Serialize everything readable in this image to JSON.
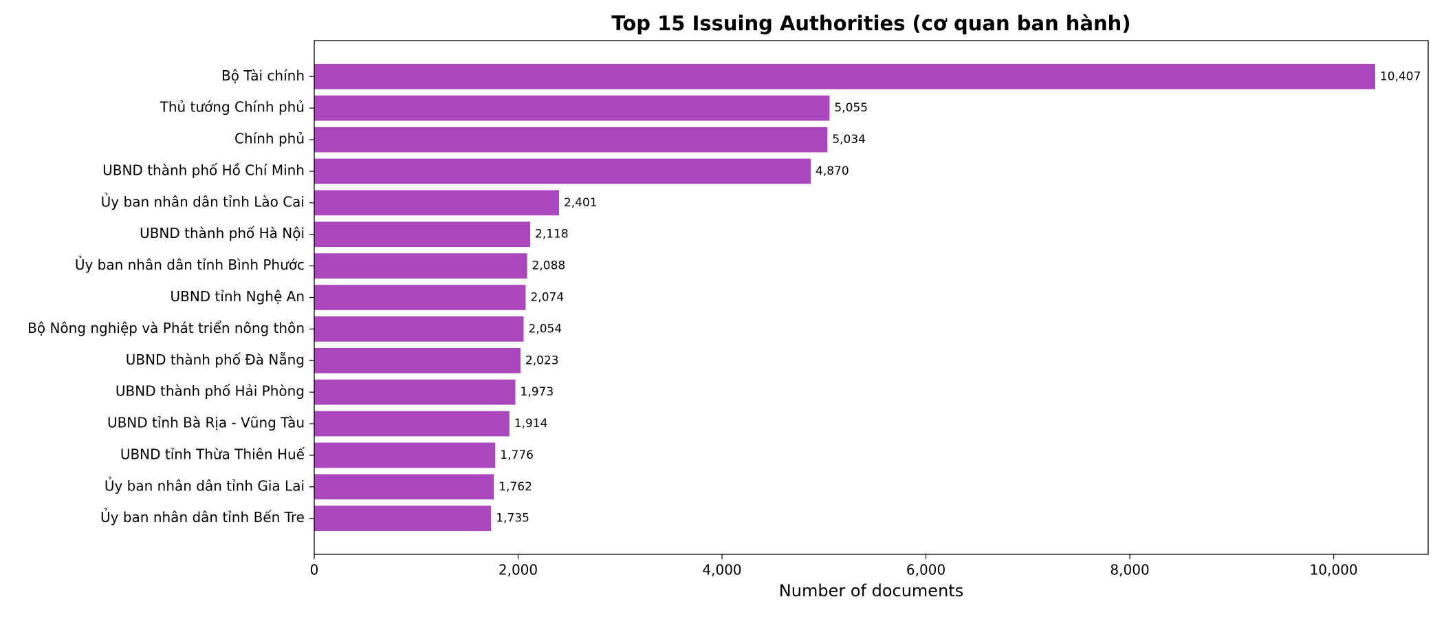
{
  "chart_data": {
    "type": "barh",
    "title": "Top 15 Issuing Authorities (cơ quan ban hành)",
    "x_label": "Number of documents",
    "categories": [
      "Bộ Tài chính",
      "Thủ tướng Chính phủ",
      "Chính phủ",
      "UBND thành phố Hồ Chí Minh",
      "Ủy ban nhân dân tỉnh Lào Cai",
      "UBND thành phố Hà Nội",
      "Ủy ban nhân dân tỉnh Bình Phước",
      "UBND tỉnh Nghệ An",
      "Bộ Nông nghiệp và Phát triển nông thôn",
      "UBND thành phố Đà Nẵng",
      "UBND thành phố Hải Phòng",
      "UBND tỉnh Bà Rịa - Vũng Tàu",
      "UBND tỉnh Thừa Thiên Huế",
      "Ủy ban nhân dân tỉnh Gia Lai",
      "Ủy ban nhân dân tỉnh Bến Tre"
    ],
    "values": [
      10407,
      5055,
      5034,
      4870,
      2401,
      2118,
      2088,
      2074,
      2054,
      2023,
      1973,
      1914,
      1776,
      1762,
      1735
    ],
    "value_labels": [
      "10,407",
      "5,055",
      "5,034",
      "4,870",
      "2,401",
      "2,118",
      "2,088",
      "2,074",
      "2,054",
      "2,023",
      "1,973",
      "1,914",
      "1,776",
      "1,762",
      "1,735"
    ],
    "color": "#ab47bc",
    "xlim": [
      0,
      10927
    ],
    "xticks": [
      0,
      {
        "value": 2000,
        "label": "2,000"
      },
      {
        "value": 4000,
        "label": "4,000"
      },
      {
        "value": 6000,
        "label": "6,000"
      },
      {
        "value": 8000,
        "label": "8,000"
      },
      {
        "value": 10000,
        "label": "10,000"
      }
    ]
  }
}
